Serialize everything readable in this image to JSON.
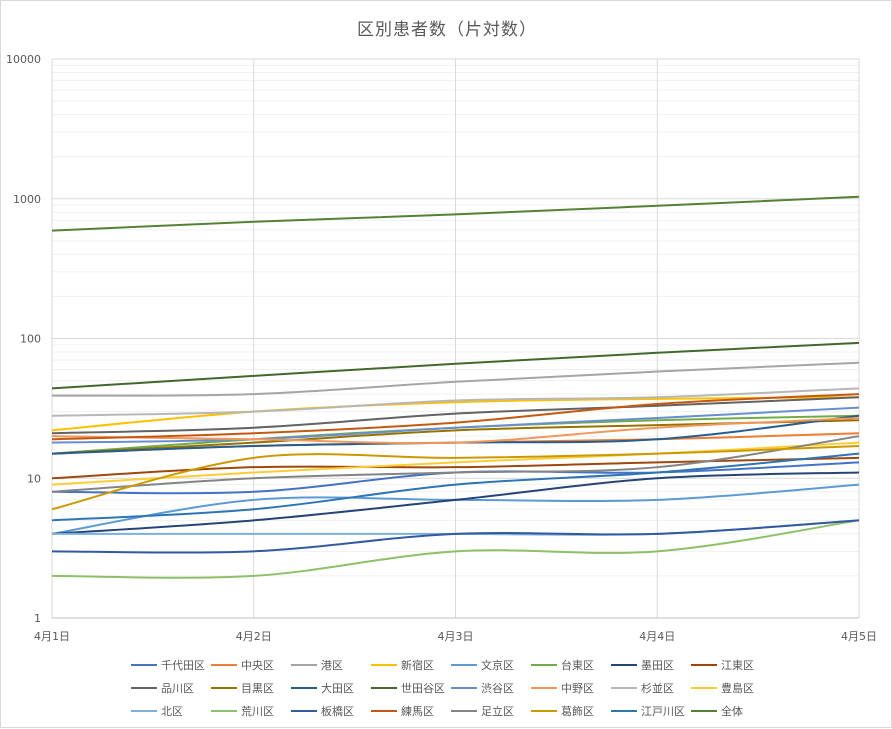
{
  "chart_data": {
    "type": "line",
    "title": "区別患者数（片対数）",
    "xlabel": "",
    "ylabel": "",
    "y_scale": "log",
    "ylim": [
      1,
      10000
    ],
    "y_ticks": [
      "1",
      "10",
      "100",
      "1000",
      "10000"
    ],
    "categories": [
      "4月1日",
      "4月2日",
      "4月3日",
      "4月4日",
      "4月5日"
    ],
    "grid": "on",
    "legend_position": "bottom",
    "series": [
      {
        "name": "千代田区",
        "color": "#4472c4",
        "values": [
          8,
          8,
          11,
          11,
          13
        ]
      },
      {
        "name": "中央区",
        "color": "#ed7d31",
        "values": [
          15,
          17,
          18,
          19,
          21
        ]
      },
      {
        "name": "港区",
        "color": "#a5a5a5",
        "values": [
          39,
          40,
          49,
          58,
          67
        ]
      },
      {
        "name": "新宿区",
        "color": "#ffc000",
        "values": [
          22,
          30,
          35,
          37,
          38
        ]
      },
      {
        "name": "文京区",
        "color": "#5b9bd5",
        "values": [
          4,
          7,
          7,
          7,
          9
        ]
      },
      {
        "name": "台東区",
        "color": "#70ad47",
        "values": [
          15,
          19,
          23,
          26,
          28
        ]
      },
      {
        "name": "墨田区",
        "color": "#264478",
        "values": [
          4,
          5,
          7,
          10,
          11
        ]
      },
      {
        "name": "江東区",
        "color": "#9e480e",
        "values": [
          10,
          12,
          12,
          13,
          14
        ]
      },
      {
        "name": "品川区",
        "color": "#636363",
        "values": [
          21,
          23,
          29,
          33,
          38
        ]
      },
      {
        "name": "目黒区",
        "color": "#997300",
        "values": [
          15,
          18,
          22,
          24,
          26
        ]
      },
      {
        "name": "大田区",
        "color": "#255e91",
        "values": [
          15,
          17,
          18,
          19,
          28
        ]
      },
      {
        "name": "世田谷区",
        "color": "#43682b",
        "values": [
          44,
          54,
          66,
          79,
          93
        ]
      },
      {
        "name": "渋谷区",
        "color": "#698ed0",
        "values": [
          18,
          19,
          23,
          27,
          32
        ]
      },
      {
        "name": "中野区",
        "color": "#f1975a",
        "values": [
          20,
          19,
          18,
          23,
          27
        ]
      },
      {
        "name": "杉並区",
        "color": "#b7b7b7",
        "values": [
          28,
          30,
          36,
          38,
          44
        ]
      },
      {
        "name": "豊島区",
        "color": "#ffcd33",
        "values": [
          9,
          11,
          13,
          15,
          18
        ]
      },
      {
        "name": "北区",
        "color": "#7cafdd",
        "values": [
          4,
          4,
          4,
          4,
          5
        ]
      },
      {
        "name": "荒川区",
        "color": "#8cc168",
        "values": [
          2,
          2,
          3,
          3,
          5
        ]
      },
      {
        "name": "板橋区",
        "color": "#335aa1",
        "values": [
          3,
          3,
          4,
          4,
          5
        ]
      },
      {
        "name": "練馬区",
        "color": "#c65911",
        "values": [
          19,
          21,
          25,
          34,
          40
        ]
      },
      {
        "name": "足立区",
        "color": "#848484",
        "values": [
          8,
          10,
          11,
          12,
          20
        ]
      },
      {
        "name": "葛飾区",
        "color": "#cc9a00",
        "values": [
          6,
          14,
          14,
          15,
          17
        ]
      },
      {
        "name": "江戸川区",
        "color": "#2e75b6",
        "values": [
          5,
          6,
          9,
          11,
          15
        ]
      },
      {
        "name": "全体",
        "color": "#548235",
        "values": [
          592,
          684,
          773,
          891,
          1033
        ]
      }
    ]
  }
}
